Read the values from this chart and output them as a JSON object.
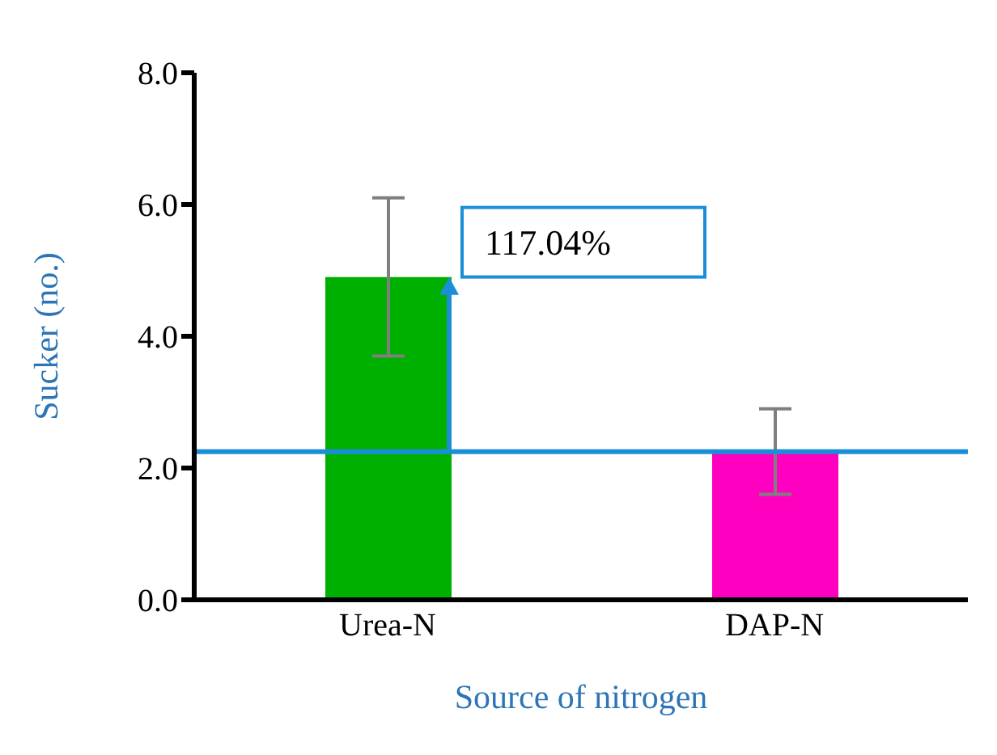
{
  "chart_data": {
    "type": "bar",
    "xlabel": "Source of nitrogen",
    "ylabel": "Sucker (no.)",
    "categories": [
      "Urea-N",
      "DAP-N"
    ],
    "values": [
      4.9,
      2.25
    ],
    "colors": [
      "#00b000",
      "#ff00c0"
    ],
    "errors": [
      1.2,
      0.65
    ],
    "ylim": [
      0,
      8
    ],
    "yticks": [
      {
        "value": 0,
        "label": "0.0"
      },
      {
        "value": 2,
        "label": "2.0"
      },
      {
        "value": 4,
        "label": "4.0"
      },
      {
        "value": 6,
        "label": "6.0"
      },
      {
        "value": 8,
        "label": "8.0"
      }
    ],
    "ref_lines": [
      {
        "axis": "y",
        "value": 2.25,
        "color": "#1a8fd8"
      }
    ],
    "annotations": [
      {
        "text": "117.04%",
        "x": "Urea-N",
        "y": 4.9
      }
    ]
  }
}
